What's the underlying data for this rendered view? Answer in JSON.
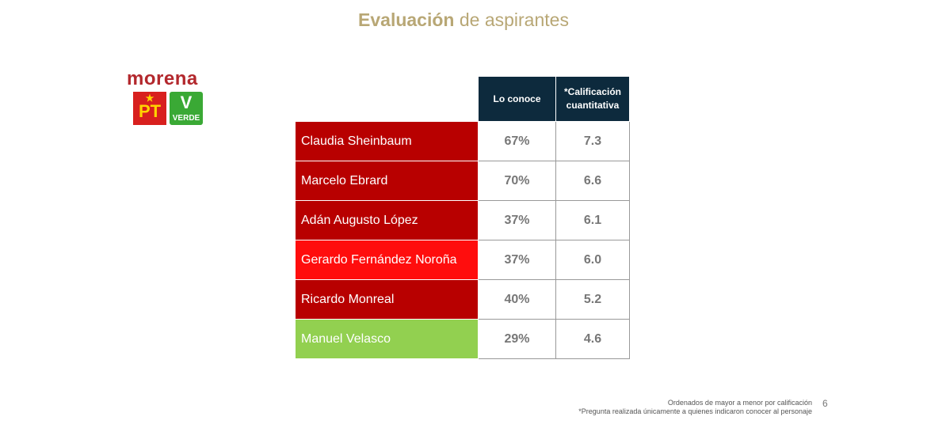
{
  "title": {
    "bold": "Evaluación",
    "rest": "de aspirantes"
  },
  "logo": {
    "morena": "morena",
    "pt": "PT",
    "verde": "VERDE"
  },
  "table": {
    "headers": [
      "Lo conoce",
      "*Calificación cuantitativa"
    ],
    "rows": [
      {
        "name": "Claudia Sheinbaum",
        "conoce": "67%",
        "calificacion": "7.3",
        "color": "#b80000"
      },
      {
        "name": "Marcelo Ebrard",
        "conoce": "70%",
        "calificacion": "6.6",
        "color": "#b80000"
      },
      {
        "name": "Adán Augusto López",
        "conoce": "37%",
        "calificacion": "6.1",
        "color": "#b80000"
      },
      {
        "name": "Gerardo Fernández Noroña",
        "conoce": "37%",
        "calificacion": "6.0",
        "color": "#ff0d0d"
      },
      {
        "name": "Ricardo Monreal",
        "conoce": "40%",
        "calificacion": "5.2",
        "color": "#b80000"
      },
      {
        "name": "Manuel Velasco",
        "conoce": "29%",
        "calificacion": "4.6",
        "color": "#92d050"
      }
    ]
  },
  "footer": {
    "line1": "Ordenados de mayor a menor por calificación",
    "line2": "*Pregunta realizada únicamente a quienes indicaron conocer al personaje",
    "page": "6"
  }
}
